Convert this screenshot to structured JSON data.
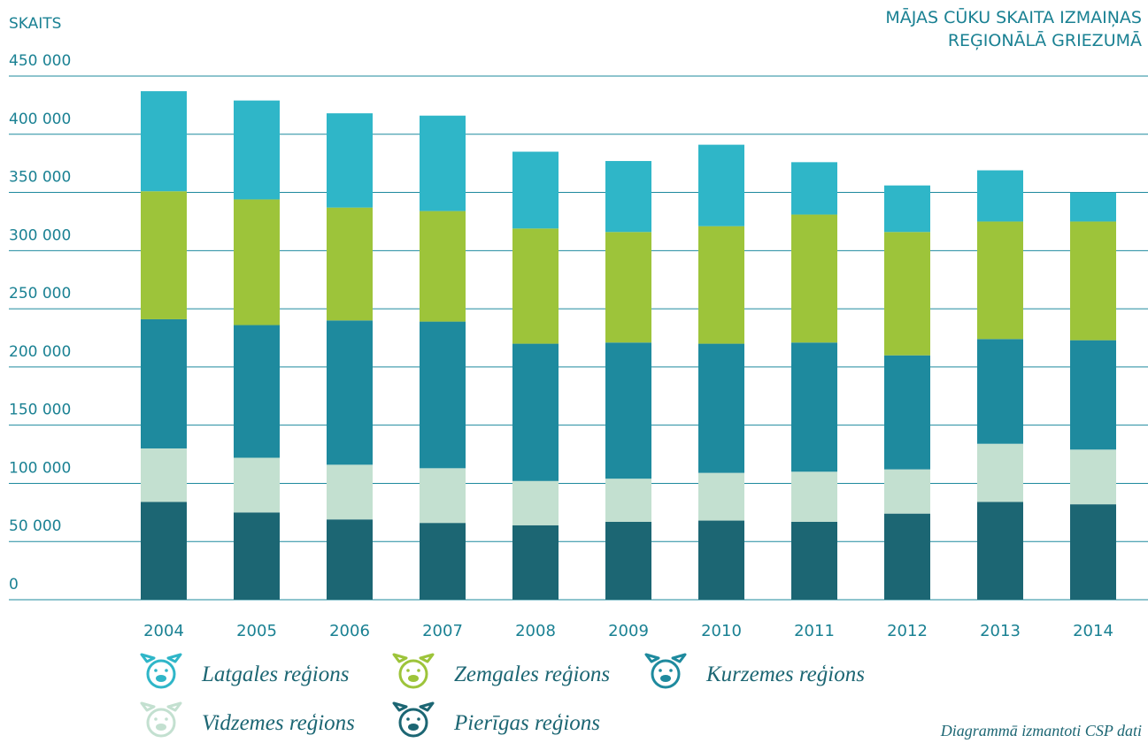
{
  "chart_data": {
    "type": "stacked_bar",
    "title": [
      "MĀJAS CŪKU SKAITA IZMAIŅAS",
      "REĢIONĀLĀ GRIEZUMĀ"
    ],
    "y_label": "SKAITS",
    "source": "Diagrammā izmantoti CSP dati",
    "categories": [
      "2004",
      "2005",
      "2006",
      "2007",
      "2008",
      "2009",
      "2010",
      "2011",
      "2012",
      "2013",
      "2014"
    ],
    "series": [
      {
        "name": "Pierīgas reģions",
        "color": "#1c6673",
        "values": [
          84000,
          75000,
          69000,
          66000,
          64000,
          67000,
          68000,
          67000,
          74000,
          84000,
          82000
        ]
      },
      {
        "name": "Vidzemes reģions",
        "color": "#c3e0d0",
        "values": [
          46000,
          47000,
          47000,
          47000,
          38000,
          37000,
          41000,
          43000,
          38000,
          50000,
          47000
        ]
      },
      {
        "name": "Kurzemes reģions",
        "color": "#1e8a9e",
        "values": [
          111000,
          114000,
          124000,
          126000,
          118000,
          117000,
          111000,
          111000,
          98000,
          90000,
          94000
        ]
      },
      {
        "name": "Zemgales reģions",
        "color": "#9dc43a",
        "values": [
          110000,
          108000,
          97000,
          95000,
          99000,
          95000,
          101000,
          110000,
          106000,
          101000,
          102000
        ]
      },
      {
        "name": "Latgales reģions",
        "color": "#2fb6c8",
        "values": [
          86000,
          85000,
          81000,
          82000,
          66000,
          61000,
          70000,
          45000,
          40000,
          44000,
          25000
        ]
      }
    ],
    "ylim": [
      0,
      450000
    ],
    "yticks": [
      0,
      {
        "value": 50000,
        "label": "50 000"
      },
      {
        "value": 100000,
        "label": "100 000"
      },
      {
        "value": 150000,
        "label": "150 000"
      },
      {
        "value": 200000,
        "label": "200 000"
      },
      {
        "value": 250000,
        "label": "250 000"
      },
      {
        "value": 300000,
        "label": "300 000"
      },
      {
        "value": 350000,
        "label": "350 000"
      },
      {
        "value": 400000,
        "label": "400 000"
      },
      {
        "value": 450000,
        "label": "450 000"
      }
    ],
    "grid": true
  }
}
